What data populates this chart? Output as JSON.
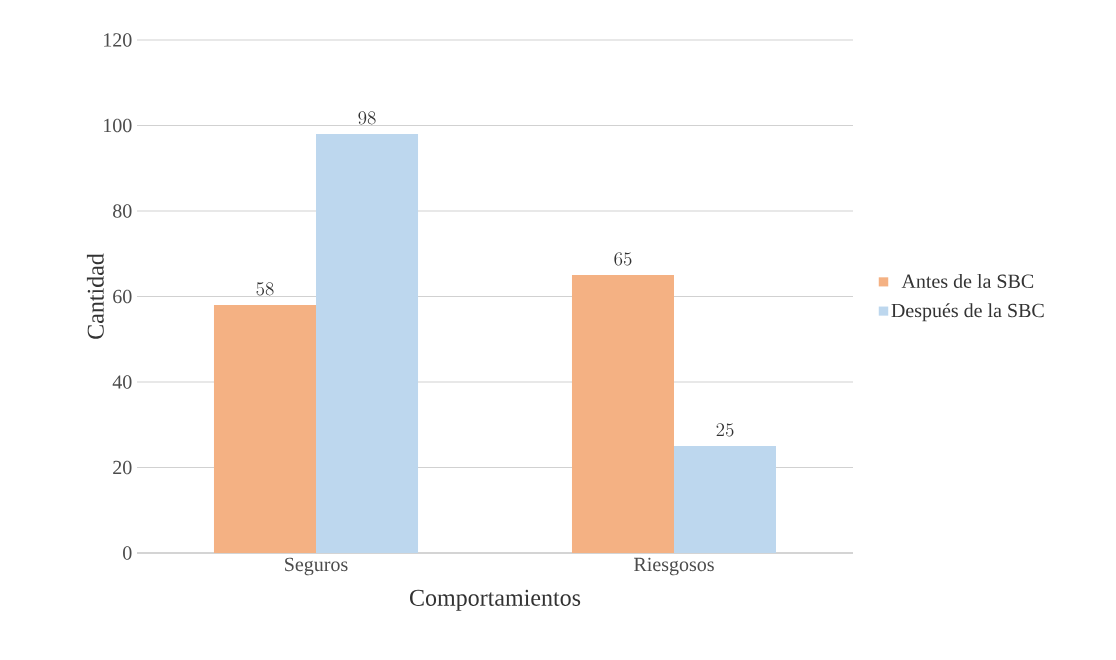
{
  "chart_data": {
    "type": "bar",
    "xlabel": "Comportamientos",
    "ylabel": "Cantidad",
    "categories": [
      "Seguros",
      "Riesgosos"
    ],
    "series": [
      {
        "name": "Antes de la SBC",
        "color": "#f4b183",
        "values": [
          58,
          65
        ]
      },
      {
        "name": "Después de la SBC",
        "color": "#bdd7ee",
        "values": [
          98,
          25
        ]
      }
    ],
    "ylim": [
      0,
      120
    ],
    "yticks": [
      0,
      20,
      40,
      60,
      80,
      100,
      120
    ],
    "grid": "y",
    "legend": "right",
    "data_labels": true
  }
}
